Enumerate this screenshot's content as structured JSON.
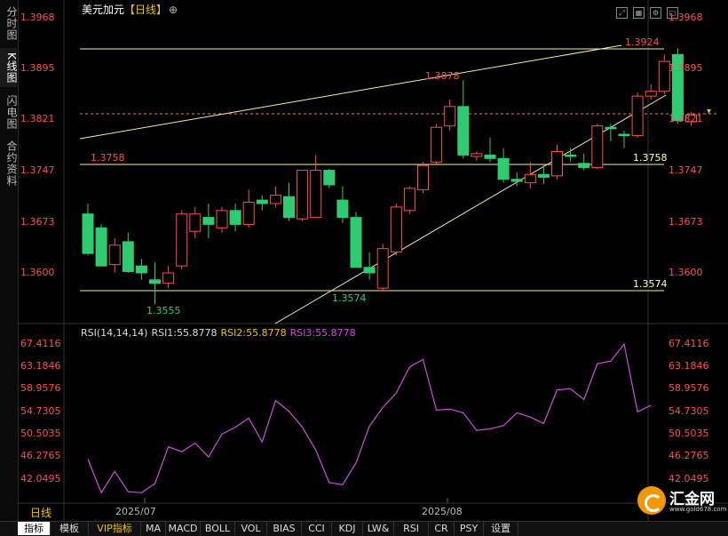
{
  "left_tabs": [
    {
      "label": "分时图",
      "active": false
    },
    {
      "label": "K线图",
      "active": true
    },
    {
      "label": "闪电图",
      "active": false
    },
    {
      "label": "合约资料",
      "active": false
    }
  ],
  "header": {
    "symbol": "美元加元",
    "period_bracket": "【日线】",
    "circle_icon": "⊕"
  },
  "top_icons": [
    "fullscreen-icon",
    "grid-icon",
    "settings-icon",
    "restore-icon"
  ],
  "price_axis": [
    "1.3968",
    "1.3895",
    "1.3821",
    "1.3747",
    "1.3673",
    "1.3600"
  ],
  "annotations": {
    "high_label": "1.3924",
    "mid_high": "1.3878",
    "level_1": "1.3758",
    "level_1_right": "1.3758",
    "low_label": "1.3555",
    "low2_label": "1.3574",
    "level_2_right": "1.3574"
  },
  "rsi": {
    "legend_title": "RSI(14,14,14)",
    "rsi1": "RSI1:55.8778",
    "rsi2": "RSI2:55.8778",
    "rsi3": "RSI3:55.8778",
    "axis": [
      "67.4116",
      "63.1846",
      "58.9576",
      "54.7305",
      "50.5035",
      "46.2765",
      "42.0495"
    ]
  },
  "dates": [
    "2025/07",
    "2025/08"
  ],
  "period_tab": "日线",
  "bottom_buttons": [
    "指标",
    "模板",
    "VIP指标",
    "MA",
    "MACD",
    "BOLL",
    "VOL",
    "BIAS",
    "CCI",
    "KDJ",
    "LW&",
    "RSI",
    "CR",
    "PSY",
    "设置"
  ],
  "logo": {
    "name": "汇金网",
    "url": "www.gold678.com"
  },
  "colors": {
    "up": "#ff4d4d",
    "down": "#2ecc71",
    "line": "#f5f0a0",
    "rsi": "#d24be0"
  },
  "chart_data": {
    "type": "candlestick",
    "series": [
      {
        "o": 1.3685,
        "h": 1.37,
        "l": 1.3625,
        "c": 1.3628
      },
      {
        "o": 1.3665,
        "h": 1.367,
        "l": 1.361,
        "c": 1.361
      },
      {
        "o": 1.3612,
        "h": 1.365,
        "l": 1.36,
        "c": 1.364
      },
      {
        "o": 1.3645,
        "h": 1.3658,
        "l": 1.36,
        "c": 1.3602
      },
      {
        "o": 1.361,
        "h": 1.362,
        "l": 1.359,
        "c": 1.36
      },
      {
        "o": 1.359,
        "h": 1.3615,
        "l": 1.3555,
        "c": 1.3585
      },
      {
        "o": 1.3585,
        "h": 1.361,
        "l": 1.3578,
        "c": 1.36
      },
      {
        "o": 1.361,
        "h": 1.369,
        "l": 1.3605,
        "c": 1.3685
      },
      {
        "o": 1.366,
        "h": 1.3695,
        "l": 1.365,
        "c": 1.3685
      },
      {
        "o": 1.368,
        "h": 1.37,
        "l": 1.365,
        "c": 1.367
      },
      {
        "o": 1.3665,
        "h": 1.3695,
        "l": 1.3658,
        "c": 1.369
      },
      {
        "o": 1.369,
        "h": 1.37,
        "l": 1.366,
        "c": 1.367
      },
      {
        "o": 1.367,
        "h": 1.372,
        "l": 1.3665,
        "c": 1.3702
      },
      {
        "o": 1.3705,
        "h": 1.3712,
        "l": 1.369,
        "c": 1.37
      },
      {
        "o": 1.37,
        "h": 1.3725,
        "l": 1.3695,
        "c": 1.3712
      },
      {
        "o": 1.371,
        "h": 1.373,
        "l": 1.3675,
        "c": 1.368
      },
      {
        "o": 1.3678,
        "h": 1.3745,
        "l": 1.3675,
        "c": 1.3748
      },
      {
        "o": 1.368,
        "h": 1.377,
        "l": 1.368,
        "c": 1.3748
      },
      {
        "o": 1.3748,
        "h": 1.375,
        "l": 1.3722,
        "c": 1.3727
      },
      {
        "o": 1.3705,
        "h": 1.3725,
        "l": 1.3672,
        "c": 1.368
      },
      {
        "o": 1.368,
        "h": 1.3688,
        "l": 1.3608,
        "c": 1.3608
      },
      {
        "o": 1.3608,
        "h": 1.363,
        "l": 1.359,
        "c": 1.36
      },
      {
        "o": 1.3578,
        "h": 1.3642,
        "l": 1.3574,
        "c": 1.3635
      },
      {
        "o": 1.363,
        "h": 1.37,
        "l": 1.3625,
        "c": 1.3695
      },
      {
        "o": 1.369,
        "h": 1.3725,
        "l": 1.3685,
        "c": 1.3722
      },
      {
        "o": 1.372,
        "h": 1.376,
        "l": 1.3715,
        "c": 1.3755
      },
      {
        "o": 1.376,
        "h": 1.3815,
        "l": 1.3755,
        "c": 1.381
      },
      {
        "o": 1.3812,
        "h": 1.385,
        "l": 1.3805,
        "c": 1.384
      },
      {
        "o": 1.384,
        "h": 1.3878,
        "l": 1.3765,
        "c": 1.377
      },
      {
        "o": 1.3768,
        "h": 1.3775,
        "l": 1.3762,
        "c": 1.3772
      },
      {
        "o": 1.377,
        "h": 1.3795,
        "l": 1.376,
        "c": 1.3765
      },
      {
        "o": 1.3765,
        "h": 1.378,
        "l": 1.373,
        "c": 1.3735
      },
      {
        "o": 1.3735,
        "h": 1.3745,
        "l": 1.3725,
        "c": 1.3732
      },
      {
        "o": 1.373,
        "h": 1.376,
        "l": 1.3722,
        "c": 1.3742
      },
      {
        "o": 1.3742,
        "h": 1.3755,
        "l": 1.3728,
        "c": 1.3738
      },
      {
        "o": 1.374,
        "h": 1.3785,
        "l": 1.3735,
        "c": 1.3775
      },
      {
        "o": 1.377,
        "h": 1.378,
        "l": 1.376,
        "c": 1.3768
      },
      {
        "o": 1.3758,
        "h": 1.3772,
        "l": 1.3748,
        "c": 1.3752
      },
      {
        "o": 1.3752,
        "h": 1.3815,
        "l": 1.375,
        "c": 1.3812
      },
      {
        "o": 1.381,
        "h": 1.3815,
        "l": 1.379,
        "c": 1.3808
      },
      {
        "o": 1.38,
        "h": 1.3805,
        "l": 1.378,
        "c": 1.3798
      },
      {
        "o": 1.3798,
        "h": 1.386,
        "l": 1.3795,
        "c": 1.3855
      },
      {
        "o": 1.3855,
        "h": 1.3872,
        "l": 1.385,
        "c": 1.3862
      },
      {
        "o": 1.3862,
        "h": 1.3915,
        "l": 1.3858,
        "c": 1.3905
      },
      {
        "o": 1.3915,
        "h": 1.3924,
        "l": 1.3815,
        "c": 1.382
      },
      {
        "o": 1.3818,
        "h": 1.3832,
        "l": 1.3812,
        "c": 1.3828
      }
    ],
    "rsi_values": [
      45.8,
      39.5,
      43.5,
      39.7,
      39.5,
      41.2,
      48.1,
      47.2,
      48.8,
      46.2,
      50.5,
      51.8,
      53.5,
      49.0,
      56.8,
      54.8,
      51.8,
      47.5,
      41.4,
      41.0,
      45.1,
      52.0,
      55.5,
      58.2,
      63.1,
      64.5,
      55.0,
      55.2,
      54.5,
      51.2,
      51.5,
      52.1,
      54.5,
      53.7,
      52.5,
      58.8,
      59.0,
      57.0,
      63.7,
      64.2,
      67.4,
      54.7,
      55.9
    ],
    "y_range": [
      1.3555,
      1.3968
    ],
    "rsi_range": [
      37.8,
      69.5
    ]
  }
}
